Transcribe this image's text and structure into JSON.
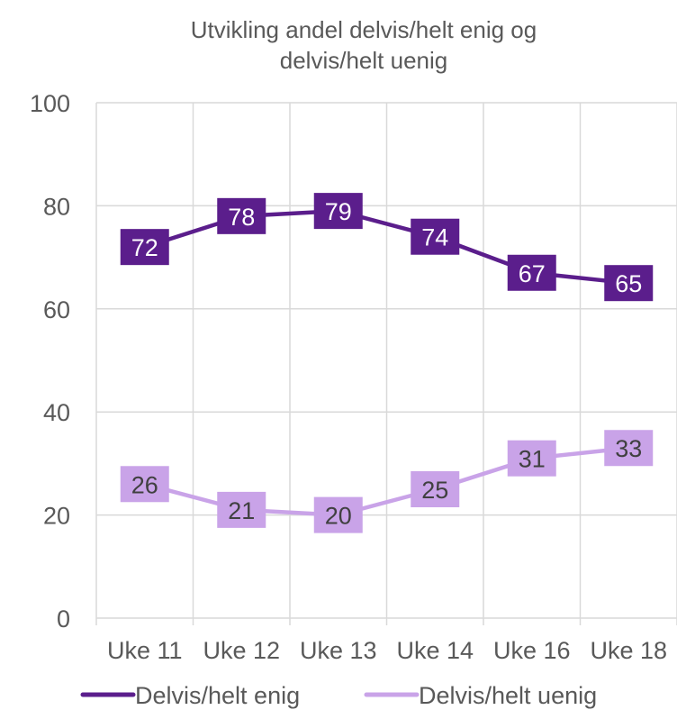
{
  "chart_data": {
    "type": "line",
    "title_lines": [
      "Utvikling andel delvis/helt enig og",
      "delvis/helt uenig"
    ],
    "categories": [
      "Uke 11",
      "Uke 12",
      "Uke 13",
      "Uke 14",
      "Uke 16",
      "Uke 18"
    ],
    "ylim": [
      0,
      100
    ],
    "yticks": [
      0,
      20,
      40,
      60,
      80,
      100
    ],
    "grid": true,
    "legend_position": "bottom",
    "series": [
      {
        "name": "Delvis/helt enig",
        "values": [
          72,
          78,
          79,
          74,
          67,
          65
        ],
        "color": "#5b1e8c",
        "label_color": "#ffffff"
      },
      {
        "name": "Delvis/helt uenig",
        "values": [
          26,
          21,
          20,
          25,
          31,
          33
        ],
        "color": "#c9a3e8",
        "label_color": "#404040"
      }
    ]
  }
}
